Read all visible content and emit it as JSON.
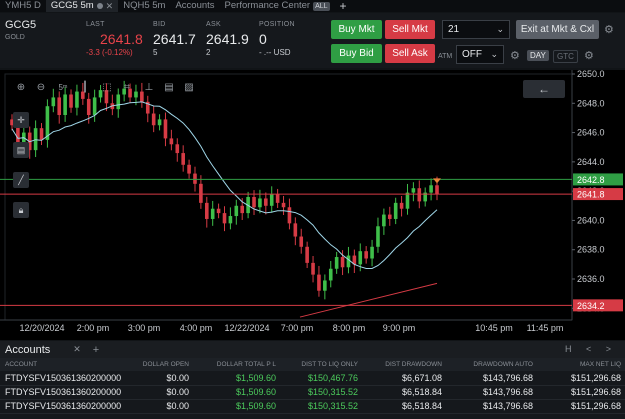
{
  "tabs": [
    {
      "label": "YMH5 D",
      "active": false
    },
    {
      "label": "GCG5 5m",
      "active": true
    },
    {
      "label": "NQH5 5m",
      "active": false
    },
    {
      "label": "Accounts",
      "active": false
    },
    {
      "label": "Performance Center",
      "active": false
    }
  ],
  "tabs_all_badge": "ALL",
  "tabs_plus": "+",
  "quote": {
    "symbol": "GCG5",
    "symbol_sub": "GOLD",
    "last_label": "LAST",
    "last_value": "2641.8",
    "last_change": "-3.3 (-0.12%)",
    "bid_label": "BID",
    "bid_value": "2641.7",
    "bid_size": "5",
    "ask_label": "ASK",
    "ask_value": "2641.9",
    "ask_size": "2",
    "position_label": "POSITION",
    "position_value": "0",
    "position_pnl": "- .-- USD"
  },
  "order": {
    "buy_mkt": "Buy Mkt",
    "sell_mkt": "Sell Mkt",
    "buy_bid": "Buy Bid",
    "sell_ask": "Sell Ask",
    "quantity": "21",
    "exit_label": "Exit at Mkt & Cxl",
    "atm_label": "ATM",
    "atm_value": "OFF",
    "day_label": "DAY",
    "gtc_label": "GTC"
  },
  "chart_data": {
    "type": "candlestick",
    "price_axis_ticks": [
      "2650.0",
      "2648.0",
      "2646.0",
      "2644.0",
      "2642.0",
      "2640.0",
      "2638.0",
      "2636.0",
      "2634.0"
    ],
    "time_axis_ticks": [
      "12/20/2024",
      "2:00 pm",
      "3:00 pm",
      "4:00 pm",
      "12/22/2024",
      "7:00 pm",
      "8:00 pm",
      "9:00 pm",
      "10:45 pm",
      "11:45 pm"
    ],
    "price_labels": [
      {
        "value": "2642.8",
        "role": "upper-line",
        "color": "#2f9e44"
      },
      {
        "value": "2641.8",
        "role": "last",
        "color": "#d63b45"
      },
      {
        "value": "2634.2",
        "role": "lower-line",
        "color": "#d63b45"
      }
    ],
    "ylim": [
      2633.2,
      2650.0
    ],
    "closes": [
      2646.5,
      2645.2,
      2646.0,
      2644.8,
      2646.3,
      2645.5,
      2647.8,
      2648.4,
      2647.2,
      2648.6,
      2647.7,
      2648.8,
      2648.3,
      2647.2,
      2648.4,
      2648.9,
      2648.0,
      2647.6,
      2648.6,
      2649.0,
      2648.4,
      2648.8,
      2648.1,
      2647.3,
      2646.5,
      2646.9,
      2645.6,
      2645.2,
      2644.6,
      2643.8,
      2643.2,
      2642.5,
      2641.2,
      2640.1,
      2640.8,
      2640.5,
      2639.8,
      2640.3,
      2641.0,
      2640.5,
      2641.6,
      2640.9,
      2641.5,
      2641.0,
      2641.8,
      2641.2,
      2640.9,
      2639.8,
      2638.9,
      2638.2,
      2637.1,
      2636.3,
      2635.2,
      2635.9,
      2636.7,
      2637.5,
      2636.8,
      2637.6,
      2637.0,
      2637.9,
      2637.4,
      2638.2,
      2639.6,
      2640.4,
      2640.1,
      2641.2,
      2640.8,
      2641.9,
      2642.2,
      2641.3,
      2641.9,
      2642.4,
      2641.8
    ],
    "moving_average": {
      "color": "#9fd6e8"
    },
    "trend_line": {
      "color": "#d63b45"
    }
  },
  "accounts": {
    "title": "Accounts",
    "close": "✕",
    "plus": "+",
    "icons": "H < >",
    "columns": [
      "ACCOUNT",
      "DOLLAR OPEN",
      "DOLLAR TOTAL P L",
      "DIST TO LIQ ONLY",
      "DIST DRAWDOWN",
      "DRAWDOWN AUTO",
      "MAX NET LIQ"
    ],
    "rows": [
      [
        "FTDYSFV150361360200000",
        "$0.00",
        "$1,509.60",
        "$150,467.76",
        "$6,671.08",
        "$143,796.68",
        "$151,296.68"
      ],
      [
        "FTDYSFV150361360200000",
        "$0.00",
        "$1,509.60",
        "$150,315.52",
        "$6,518.84",
        "$143,796.68",
        "$151,296.68"
      ],
      [
        "FTDYSFV150361360200000",
        "$0.00",
        "$1,509.60",
        "$150,315.52",
        "$6,518.84",
        "$143,796.68",
        "$151,296.68"
      ]
    ]
  }
}
